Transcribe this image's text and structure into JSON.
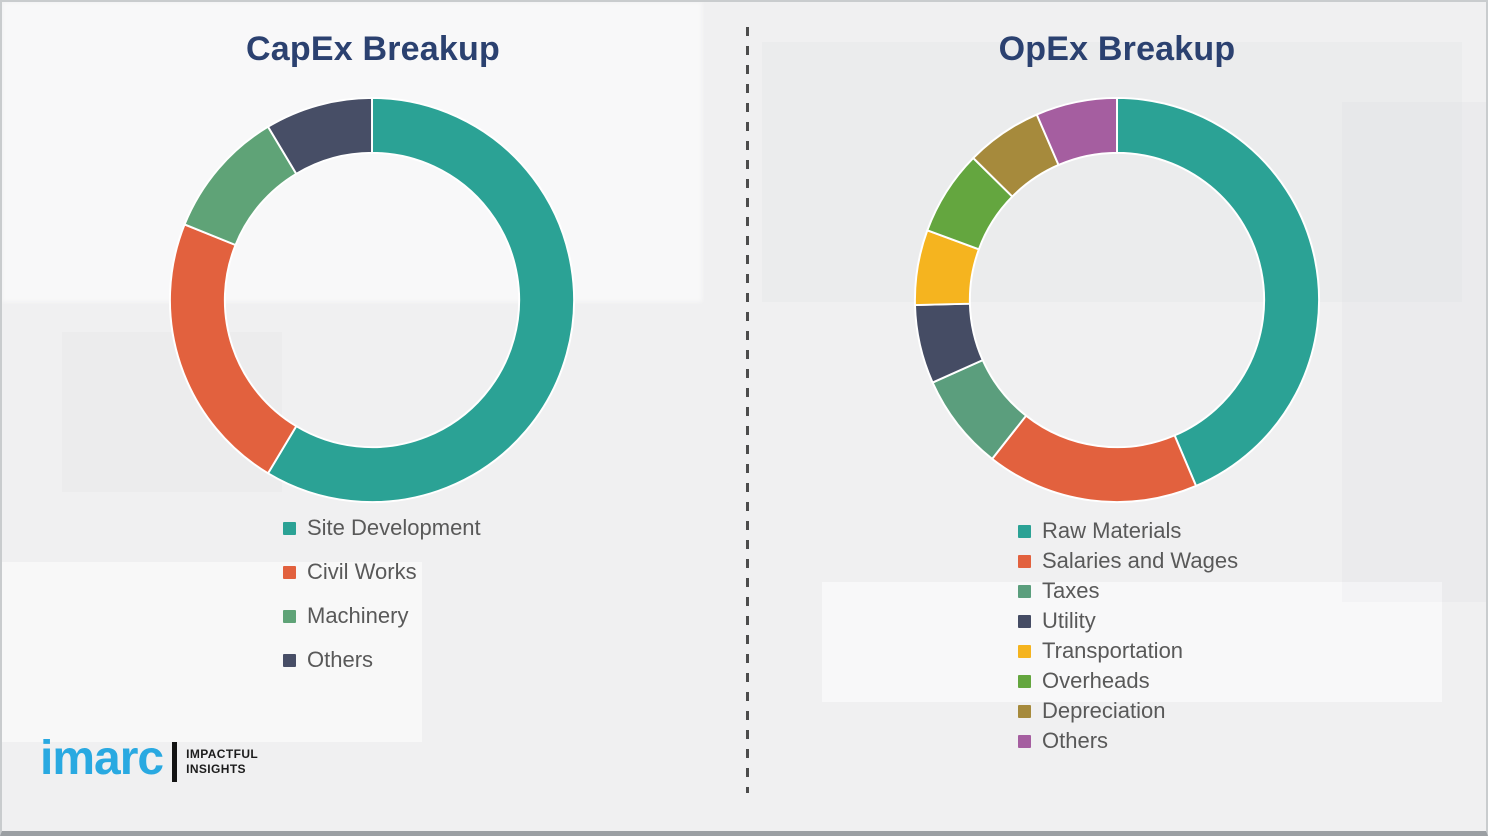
{
  "chart_data": [
    {
      "type": "pie",
      "subtype": "donut",
      "title": "CapEx Breakup",
      "labels": [
        "Site Development",
        "Civil Works",
        "Machinery",
        "Others"
      ],
      "values": [
        58.6,
        22.5,
        10.3,
        8.6
      ],
      "colors": [
        "#2BA295",
        "#E2613E",
        "#5FA377",
        "#474E66"
      ],
      "start_angle_deg": 0,
      "direction": "clockwise",
      "legend_position": "below-left",
      "units": "percent"
    },
    {
      "type": "pie",
      "subtype": "donut",
      "title": "OpEx Breakup",
      "labels": [
        "Raw Materials",
        "Salaries and Wages",
        "Taxes",
        "Utility",
        "Transportation",
        "Overheads",
        "Depreciation",
        "Others"
      ],
      "values": [
        43.6,
        17.0,
        7.7,
        6.3,
        6.0,
        6.8,
        6.1,
        6.5
      ],
      "colors": [
        "#2BA295",
        "#E2613E",
        "#5B9E7D",
        "#454C64",
        "#F5B41F",
        "#64A63F",
        "#A68A3C",
        "#A55EA0"
      ],
      "start_angle_deg": 0,
      "direction": "clockwise",
      "legend_position": "below-left",
      "units": "percent"
    }
  ],
  "logo": {
    "brand": "imarc",
    "tagline_line1": "IMPACTFUL",
    "tagline_line2": "INSIGHTS",
    "brand_color": "#29A9E1"
  },
  "style": {
    "title_color": "#2B4170",
    "legend_text_color": "#595959",
    "background_color": "#F0F0F1",
    "slice_gap_color": "#FFFFFF"
  }
}
